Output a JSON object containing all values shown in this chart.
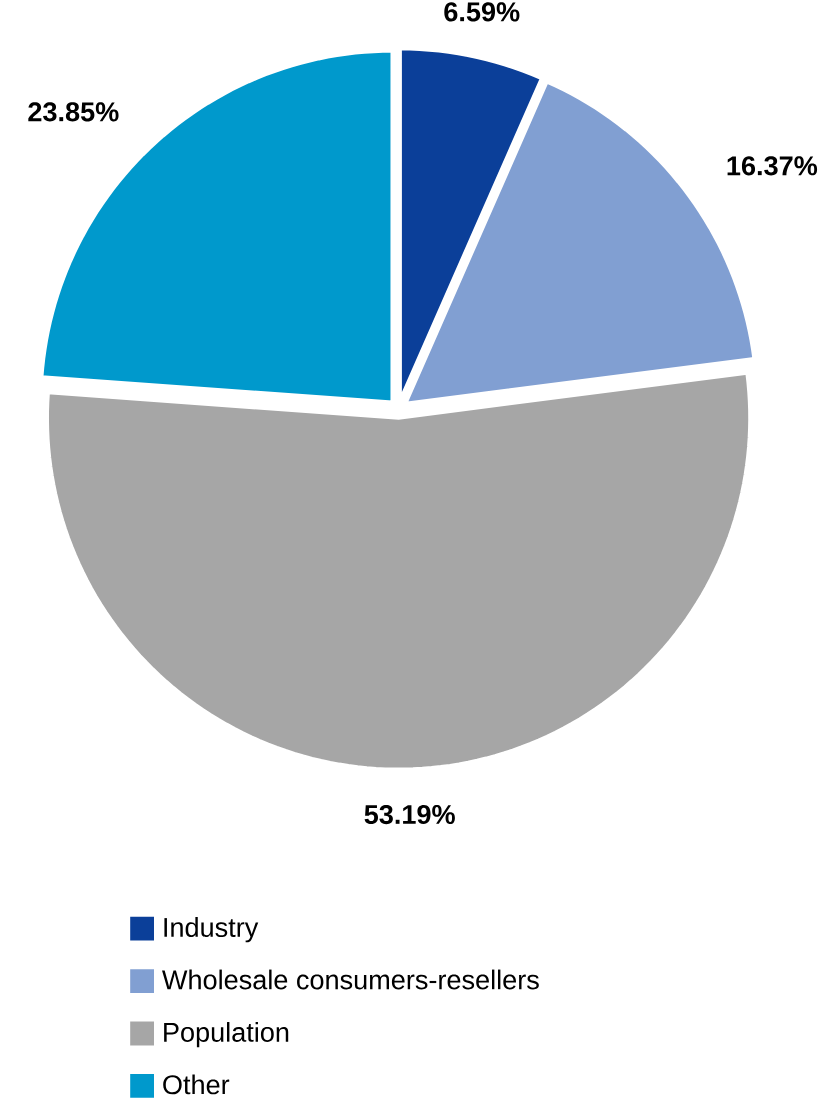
{
  "chart_data": {
    "type": "pie",
    "categories": [
      "Industry",
      "Wholesale consumers-resellers",
      "Population",
      "Other"
    ],
    "values": [
      6.59,
      16.37,
      53.19,
      23.85
    ],
    "colors": [
      "#0b3f99",
      "#819fd2",
      "#a6a6a6",
      "#0099cc"
    ],
    "value_labels": [
      "6.59%",
      "16.37%",
      "53.19%",
      "23.85%"
    ],
    "legend": "bottom"
  }
}
